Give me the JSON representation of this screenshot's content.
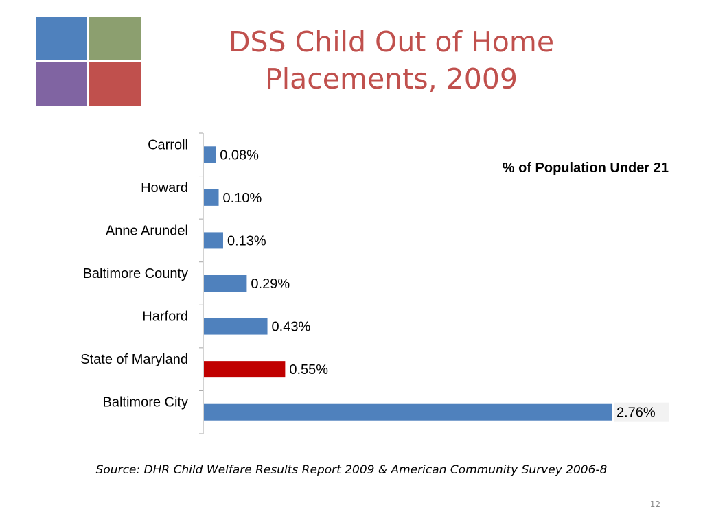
{
  "title": "DSS Child Out of Home Placements, 2009",
  "source": "Source: DHR Child Welfare Results Report 2009 & American Community Survey 2006-8",
  "slide_number": "12",
  "colors": {
    "title": "#c0504d",
    "bar_default": "#4f81bd",
    "bar_highlight": "#c00000",
    "logo": [
      "#4f81bd",
      "#8c9f6f",
      "#8064a2",
      "#c0504d"
    ]
  },
  "chart_data": {
    "type": "bar",
    "orientation": "horizontal",
    "annotation": "% of Population Under 21",
    "categories": [
      "Carroll",
      "Howard",
      "Anne Arundel",
      "Baltimore County",
      "Harford",
      "State of Maryland",
      "Baltimore City"
    ],
    "values": [
      0.08,
      0.1,
      0.13,
      0.29,
      0.43,
      0.55,
      2.76
    ],
    "labels": [
      "0.08%",
      "0.10%",
      "0.13%",
      "0.29%",
      "0.43%",
      "0.55%",
      "2.76%"
    ],
    "highlight_index": 5,
    "xlim": [
      0,
      2.76
    ],
    "grid": false,
    "legend": "none"
  }
}
